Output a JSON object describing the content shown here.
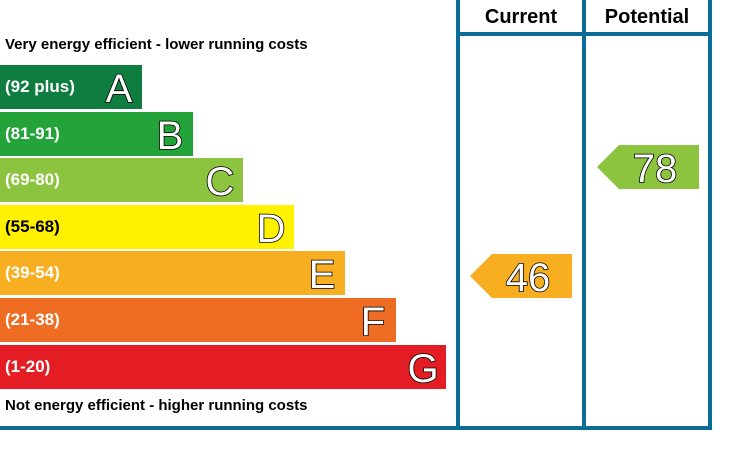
{
  "chart_data": {
    "type": "table",
    "columns": [
      "Current",
      "Potential"
    ],
    "top_note": "Very energy efficient - lower running costs",
    "bottom_note": "Not energy efficient - higher running costs",
    "bands": [
      {
        "letter": "A",
        "range": "(92 plus)",
        "color": "#0f7d40"
      },
      {
        "letter": "B",
        "range": "(81-91)",
        "color": "#23a33a"
      },
      {
        "letter": "C",
        "range": "(69-80)",
        "color": "#8cc43f"
      },
      {
        "letter": "D",
        "range": "(55-68)",
        "color": "#fff100"
      },
      {
        "letter": "E",
        "range": "(39-54)",
        "color": "#f7ae21"
      },
      {
        "letter": "F",
        "range": "(21-38)",
        "color": "#ee6d22"
      },
      {
        "letter": "G",
        "range": "(1-20)",
        "color": "#e31d23"
      }
    ],
    "current": {
      "value": "46",
      "band": "E",
      "color": "#f7ae21"
    },
    "potential": {
      "value": "78",
      "band": "C",
      "color": "#8cc43f"
    }
  }
}
